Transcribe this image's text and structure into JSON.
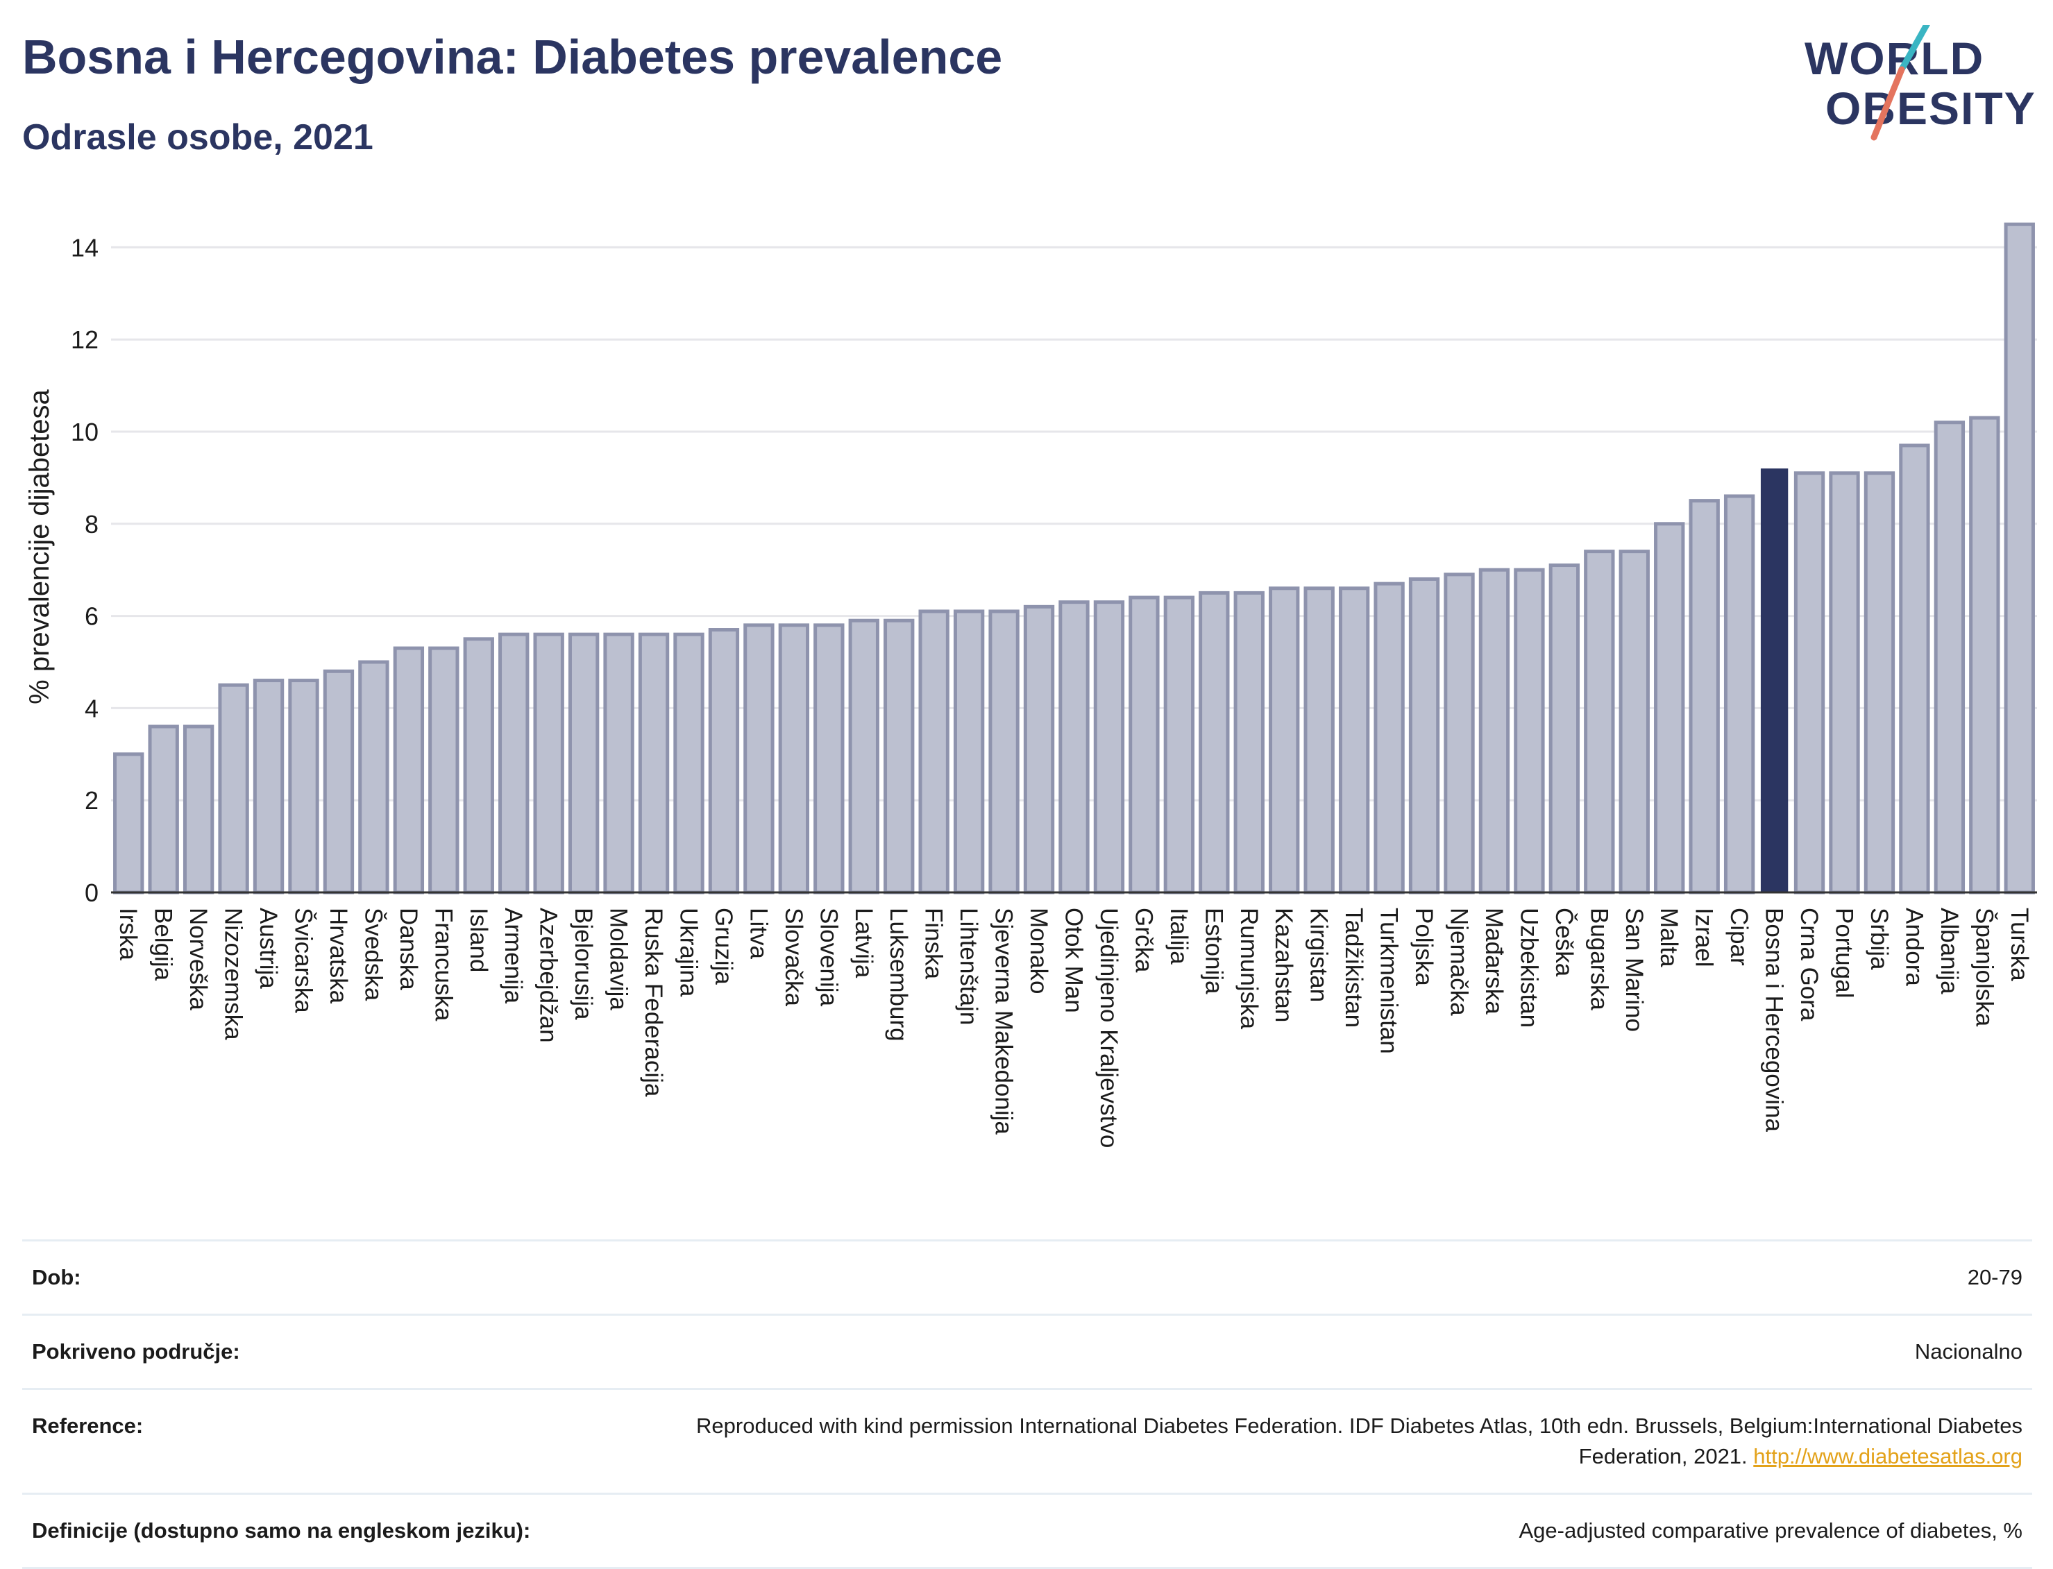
{
  "header": {
    "title": "Bosna i Hercegovina: Diabetes prevalence",
    "subtitle": "Odrasle osobe, 2021"
  },
  "logo": {
    "line1": "WORLD",
    "line2": "OBESITY",
    "accent_colors": [
      "#3ab5c3",
      "#e4745e"
    ]
  },
  "colors": {
    "bar": "#bcc0d0",
    "bar_stroke": "#8e93ad",
    "highlight": "#2b3561",
    "grid": "#e6e6ea",
    "text": "#2b3561",
    "link": "#e3a21a"
  },
  "chart_data": {
    "type": "bar",
    "ylabel": "% prevalencije dijabetesa",
    "ylim": [
      0,
      15
    ],
    "yticks": [
      0,
      2,
      4,
      6,
      8,
      10,
      12,
      14
    ],
    "grid": true,
    "highlight": "Bosna i Hercegovina",
    "categories": [
      "Irska",
      "Belgija",
      "Norveška",
      "Nizozemska",
      "Austrija",
      "Švicarska",
      "Hrvatska",
      "Švedska",
      "Danska",
      "Francuska",
      "Island",
      "Armenija",
      "Azerbejdžan",
      "Bjelorusija",
      "Moldavija",
      "Ruska Federacija",
      "Ukrajina",
      "Gruzija",
      "Litva",
      "Slovačka",
      "Slovenija",
      "Latvija",
      "Luksemburg",
      "Finska",
      "Lihtenštajn",
      "Sjeverna Makedonija",
      "Monako",
      "Otok Man",
      "Ujedinjeno Kraljevstvo",
      "Grčka",
      "Italija",
      "Estonija",
      "Rumunjska",
      "Kazahstan",
      "Kirgistan",
      "Tadžikistan",
      "Turkmenistan",
      "Poljska",
      "Njemačka",
      "Mađarska",
      "Uzbekistan",
      "Češka",
      "Bugarska",
      "San Marino",
      "Malta",
      "Izrael",
      "Cipar",
      "Bosna i Hercegovina",
      "Crna Gora",
      "Portugal",
      "Srbija",
      "Andora",
      "Albanija",
      "Španjolska",
      "Turska"
    ],
    "values": [
      3.0,
      3.6,
      3.6,
      4.5,
      4.6,
      4.6,
      4.8,
      5.0,
      5.3,
      5.3,
      5.5,
      5.6,
      5.6,
      5.6,
      5.6,
      5.6,
      5.6,
      5.7,
      5.8,
      5.8,
      5.8,
      5.9,
      5.9,
      6.1,
      6.1,
      6.1,
      6.2,
      6.3,
      6.3,
      6.4,
      6.4,
      6.5,
      6.5,
      6.6,
      6.6,
      6.6,
      6.7,
      6.8,
      6.9,
      7.0,
      7.0,
      7.1,
      7.4,
      7.4,
      8.0,
      8.5,
      8.6,
      9.2,
      9.1,
      9.1,
      9.1,
      9.7,
      10.2,
      10.3,
      14.5
    ]
  },
  "info": {
    "rows": [
      {
        "label": "Dob:",
        "value": "20-79"
      },
      {
        "label": "Pokriveno područje:",
        "value": "Nacionalno"
      },
      {
        "label": "Reference:",
        "value": "Reproduced with kind permission International Diabetes Federation.  IDF Diabetes Atlas, 10th edn. Brussels, Belgium:International Diabetes Federation, 2021. ",
        "link": "http://www.diabetesatlas.org"
      },
      {
        "label": "Definicije (dostupno samo na engleskom jeziku):",
        "value": "Age-adjusted comparative prevalence of diabetes, %"
      }
    ]
  }
}
